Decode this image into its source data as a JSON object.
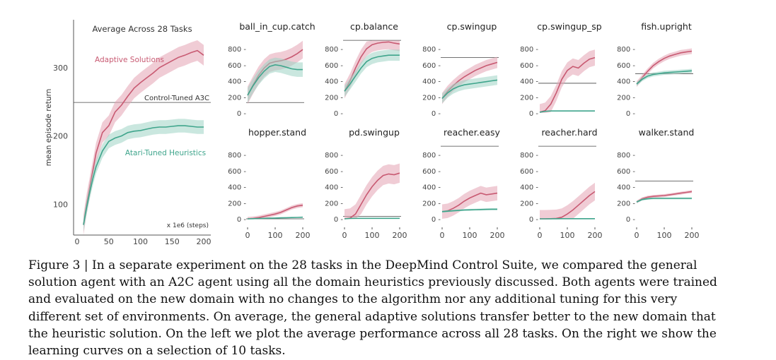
{
  "colors": {
    "adaptive": "#c85a72",
    "adaptive_band": "#e3a3b2",
    "atari": "#3fa58c",
    "atari_band": "#9fd4c4",
    "baseline": "#444444",
    "axis": "#555555"
  },
  "main_chart": {
    "title": "Average Across 28 Tasks",
    "ylabel": "mean episode return",
    "x_unit_note": "x 1e6 (steps)",
    "labels": {
      "adaptive": "Adaptive Solutions",
      "baseline": "Control-Tuned A3C",
      "atari": "Atari-Tuned Heuristics"
    },
    "y_tick_labels": [
      "100",
      "200",
      "300"
    ],
    "x_tick_labels": [
      "0",
      "50",
      "100",
      "150",
      "200"
    ]
  },
  "small_chart_ticks": {
    "y": [
      "0 -",
      "200 -",
      "400 -",
      "600 -",
      "800 -"
    ],
    "x": [
      "0",
      "100",
      "200"
    ]
  },
  "chart_data": [
    {
      "type": "line",
      "title": "Average Across 28 Tasks",
      "xlabel": "x 1e6 (steps)",
      "ylabel": "mean episode return",
      "xlim": [
        0,
        200
      ],
      "ylim": [
        55,
        370
      ],
      "yticks": [
        100,
        200,
        300
      ],
      "xticks": [
        0,
        50,
        100,
        150,
        200
      ],
      "baseline": {
        "name": "Control-Tuned A3C",
        "value": 249
      },
      "x": [
        10,
        15,
        20,
        25,
        30,
        40,
        50,
        60,
        70,
        80,
        90,
        100,
        110,
        120,
        130,
        140,
        150,
        160,
        170,
        180,
        190,
        200
      ],
      "series": [
        {
          "name": "Adaptive Solutions",
          "values": [
            70,
            100,
            125,
            150,
            175,
            205,
            215,
            235,
            245,
            258,
            270,
            278,
            285,
            292,
            300,
            305,
            310,
            315,
            318,
            322,
            325,
            318
          ],
          "band": 15
        },
        {
          "name": "Atari-Tuned Heuristics",
          "values": [
            70,
            95,
            118,
            138,
            155,
            178,
            192,
            197,
            200,
            205,
            207,
            208,
            210,
            212,
            213,
            213,
            214,
            215,
            215,
            214,
            213,
            213
          ],
          "band": 10
        }
      ]
    },
    {
      "type": "line",
      "title": "ball_in_cup.catch",
      "xlim": [
        0,
        200
      ],
      "ylim": [
        0,
        880
      ],
      "baseline": 130,
      "x": [
        0,
        20,
        40,
        60,
        80,
        100,
        120,
        140,
        160,
        180,
        200
      ],
      "series": [
        {
          "values": [
            220,
            350,
            470,
            560,
            620,
            640,
            650,
            670,
            700,
            740,
            790
          ],
          "band": 110
        },
        {
          "values": [
            220,
            340,
            440,
            520,
            580,
            600,
            590,
            570,
            550,
            540,
            540
          ],
          "band": 90
        }
      ]
    },
    {
      "type": "line",
      "title": "cp.balance",
      "xlim": [
        0,
        200
      ],
      "ylim": [
        0,
        880
      ],
      "baseline": 1000,
      "x": [
        0,
        20,
        40,
        60,
        80,
        100,
        120,
        140,
        160,
        180,
        200
      ],
      "series": [
        {
          "values": [
            270,
            400,
            560,
            700,
            800,
            850,
            870,
            880,
            885,
            870,
            860
          ],
          "band": 90
        },
        {
          "values": [
            270,
            360,
            460,
            560,
            640,
            680,
            700,
            710,
            720,
            720,
            720
          ],
          "band": 70
        }
      ]
    },
    {
      "type": "line",
      "title": "cp.swingup",
      "xlim": [
        0,
        200
      ],
      "ylim": [
        0,
        880
      ],
      "baseline": 690,
      "x": [
        0,
        20,
        40,
        60,
        80,
        100,
        120,
        140,
        160,
        180,
        200
      ],
      "series": [
        {
          "values": [
            180,
            270,
            340,
            400,
            450,
            490,
            530,
            560,
            590,
            610,
            630
          ],
          "band": 70
        },
        {
          "values": [
            180,
            250,
            300,
            330,
            350,
            360,
            370,
            380,
            390,
            400,
            410
          ],
          "band": 60
        }
      ]
    },
    {
      "type": "line",
      "title": "cp.swingup_sp",
      "xlim": [
        0,
        200
      ],
      "ylim": [
        0,
        880
      ],
      "baseline": 370,
      "x": [
        0,
        20,
        40,
        60,
        80,
        100,
        120,
        140,
        160,
        180,
        200
      ],
      "series": [
        {
          "values": [
            10,
            30,
            110,
            250,
            420,
            530,
            580,
            560,
            620,
            670,
            690
          ],
          "band": 100
        },
        {
          "values": [
            10,
            20,
            25,
            25,
            25,
            25,
            25,
            25,
            25,
            25,
            25
          ],
          "band": 5
        }
      ]
    },
    {
      "type": "line",
      "title": "fish.upright",
      "xlim": [
        0,
        200
      ],
      "ylim": [
        0,
        880
      ],
      "baseline": 490,
      "x": [
        0,
        20,
        40,
        60,
        80,
        100,
        120,
        140,
        160,
        180,
        200
      ],
      "series": [
        {
          "values": [
            360,
            440,
            520,
            590,
            640,
            680,
            710,
            730,
            750,
            760,
            770
          ],
          "band": 35
        },
        {
          "values": [
            360,
            420,
            460,
            480,
            490,
            500,
            505,
            510,
            515,
            520,
            525
          ],
          "band": 25
        }
      ]
    },
    {
      "type": "line",
      "title": "hopper.stand",
      "xlim": [
        0,
        200
      ],
      "ylim": [
        0,
        880
      ],
      "baseline": 0,
      "x": [
        0,
        20,
        40,
        60,
        80,
        100,
        120,
        140,
        160,
        180,
        200
      ],
      "series": [
        {
          "values": [
            0,
            5,
            15,
            30,
            45,
            60,
            80,
            110,
            140,
            160,
            170
          ],
          "band": 25
        },
        {
          "values": [
            0,
            2,
            4,
            6,
            8,
            10,
            12,
            14,
            16,
            18,
            20
          ],
          "band": 4
        }
      ]
    },
    {
      "type": "line",
      "title": "pd.swingup",
      "xlim": [
        0,
        200
      ],
      "ylim": [
        0,
        880
      ],
      "baseline": 30,
      "x": [
        0,
        20,
        40,
        60,
        80,
        100,
        120,
        140,
        160,
        180,
        200
      ],
      "series": [
        {
          "values": [
            0,
            10,
            60,
            180,
            300,
            400,
            480,
            540,
            560,
            550,
            570
          ],
          "band": 120
        },
        {
          "values": [
            0,
            5,
            6,
            6,
            6,
            6,
            6,
            6,
            6,
            6,
            6
          ],
          "band": 3
        }
      ]
    },
    {
      "type": "line",
      "title": "reacher.easy",
      "xlim": [
        0,
        200
      ],
      "ylim": [
        0,
        880
      ],
      "baseline": 1000,
      "x": [
        0,
        20,
        40,
        60,
        80,
        100,
        120,
        140,
        160,
        180,
        200
      ],
      "series": [
        {
          "values": [
            90,
            100,
            130,
            170,
            220,
            260,
            290,
            320,
            300,
            310,
            320
          ],
          "band": 90
        },
        {
          "values": [
            90,
            95,
            100,
            105,
            110,
            112,
            114,
            116,
            118,
            120,
            120
          ],
          "band": 12
        }
      ]
    },
    {
      "type": "line",
      "title": "reacher.hard",
      "xlim": [
        0,
        200
      ],
      "ylim": [
        0,
        880
      ],
      "baseline": 1000,
      "x": [
        0,
        20,
        40,
        60,
        80,
        100,
        120,
        140,
        160,
        180,
        200
      ],
      "series": [
        {
          "values": [
            0,
            0,
            2,
            5,
            20,
            60,
            110,
            170,
            230,
            290,
            340
          ],
          "band": 110
        },
        {
          "values": [
            0,
            0,
            1,
            1,
            2,
            2,
            2,
            2,
            2,
            2,
            2
          ],
          "band": 2
        }
      ]
    },
    {
      "type": "line",
      "title": "walker.stand",
      "xlim": [
        0,
        200
      ],
      "ylim": [
        0,
        880
      ],
      "baseline": 470,
      "x": [
        0,
        20,
        40,
        60,
        80,
        100,
        120,
        140,
        160,
        180,
        200
      ],
      "series": [
        {
          "values": [
            210,
            250,
            270,
            280,
            285,
            290,
            300,
            310,
            320,
            330,
            340
          ],
          "band": 18
        },
        {
          "values": [
            210,
            240,
            250,
            255,
            255,
            255,
            255,
            255,
            255,
            255,
            255
          ],
          "band": 12
        }
      ]
    }
  ],
  "caption": {
    "lines": [
      "Figure 3 | In a separate experiment on the 28 tasks in the DeepMind Control Suite, we compared the general",
      "solution agent with an A2C agent using all the domain heuristics previously discussed. Both agents were trained",
      "and evaluated on the new domain with no changes to the algorithm nor any additional tuning for this very",
      "different set of environments. On average, the general adaptive solutions transfer better to the new domain that",
      "the heuristic solution. On the left we plot the average performance across all 28 tasks. On the right we show the",
      "learning curves on a selection of 10 tasks."
    ]
  }
}
